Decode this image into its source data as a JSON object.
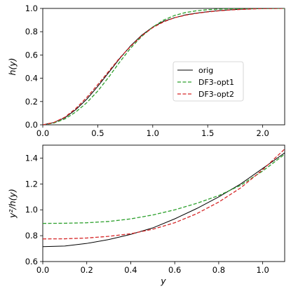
{
  "chart_data": [
    {
      "type": "line",
      "ylabel": "h(y)",
      "xlabel": "",
      "xlim": [
        0.0,
        2.2
      ],
      "ylim": [
        0.0,
        1.0
      ],
      "xticks": [
        "0.0",
        "0.5",
        "1.0",
        "1.5",
        "2.0"
      ],
      "yticks": [
        "0.0",
        "0.2",
        "0.4",
        "0.6",
        "0.8",
        "1.0"
      ],
      "legend": {
        "placement": "center-right",
        "entries": [
          "orig",
          "DF3-opt1",
          "DF3-opt2"
        ]
      },
      "series": [
        {
          "name": "orig",
          "color": "#000000",
          "style": "solid",
          "x": [
            0.0,
            0.1,
            0.2,
            0.3,
            0.4,
            0.5,
            0.6,
            0.7,
            0.8,
            0.9,
            1.0,
            1.1,
            1.2,
            1.3,
            1.4,
            1.5,
            1.6,
            1.7,
            1.8,
            1.9,
            2.0,
            2.1,
            2.2
          ],
          "y": [
            0.0,
            0.02,
            0.06,
            0.13,
            0.22,
            0.33,
            0.45,
            0.57,
            0.68,
            0.77,
            0.84,
            0.89,
            0.92,
            0.945,
            0.96,
            0.972,
            0.981,
            0.988,
            0.993,
            0.996,
            0.998,
            0.999,
            1.0
          ]
        },
        {
          "name": "DF3-opt1",
          "color": "#2ca02c",
          "style": "dashed",
          "x": [
            0.0,
            0.1,
            0.2,
            0.3,
            0.4,
            0.5,
            0.6,
            0.7,
            0.8,
            0.9,
            1.0,
            1.1,
            1.2,
            1.3,
            1.4,
            1.5,
            1.6,
            1.7,
            1.8,
            1.9,
            2.0,
            2.1,
            2.2
          ],
          "y": [
            0.0,
            0.015,
            0.05,
            0.11,
            0.19,
            0.29,
            0.41,
            0.54,
            0.66,
            0.76,
            0.84,
            0.9,
            0.94,
            0.965,
            0.98,
            0.989,
            0.994,
            0.997,
            0.998,
            0.999,
            1.0,
            1.0,
            1.0
          ]
        },
        {
          "name": "DF3-opt2",
          "color": "#d62728",
          "style": "dashed",
          "x": [
            0.0,
            0.1,
            0.2,
            0.3,
            0.4,
            0.5,
            0.6,
            0.7,
            0.8,
            0.9,
            1.0,
            1.1,
            1.2,
            1.3,
            1.4,
            1.5,
            1.6,
            1.7,
            1.8,
            1.9,
            2.0,
            2.1,
            2.2
          ],
          "y": [
            0.0,
            0.02,
            0.065,
            0.14,
            0.235,
            0.345,
            0.46,
            0.575,
            0.675,
            0.765,
            0.835,
            0.885,
            0.92,
            0.942,
            0.958,
            0.97,
            0.979,
            0.986,
            0.991,
            0.995,
            0.998,
            0.999,
            1.0
          ]
        }
      ]
    },
    {
      "type": "line",
      "ylabel": "y²/h(y)",
      "xlabel": "y",
      "xlim": [
        0.0,
        1.1
      ],
      "ylim": [
        0.6,
        1.5
      ],
      "xticks": [
        "0.0",
        "0.2",
        "0.4",
        "0.6",
        "0.8",
        "1.0"
      ],
      "yticks": [
        "0.6",
        "0.8",
        "1.0",
        "1.2",
        "1.4"
      ],
      "series": [
        {
          "name": "orig",
          "color": "#000000",
          "style": "solid",
          "x": [
            0.0,
            0.1,
            0.2,
            0.3,
            0.4,
            0.5,
            0.6,
            0.7,
            0.8,
            0.9,
            1.0,
            1.1
          ],
          "y": [
            0.715,
            0.72,
            0.74,
            0.77,
            0.81,
            0.86,
            0.93,
            1.01,
            1.1,
            1.2,
            1.32,
            1.44
          ]
        },
        {
          "name": "DF3-opt1",
          "color": "#2ca02c",
          "style": "dashed",
          "x": [
            0.0,
            0.1,
            0.2,
            0.3,
            0.4,
            0.5,
            0.6,
            0.7,
            0.8,
            0.9,
            1.0,
            1.1
          ],
          "y": [
            0.895,
            0.896,
            0.9,
            0.91,
            0.93,
            0.96,
            1.0,
            1.05,
            1.11,
            1.19,
            1.3,
            1.43
          ]
        },
        {
          "name": "DF3-opt2",
          "color": "#d62728",
          "style": "dashed",
          "x": [
            0.0,
            0.1,
            0.2,
            0.3,
            0.4,
            0.5,
            0.6,
            0.7,
            0.8,
            0.9,
            1.0,
            1.1
          ],
          "y": [
            0.775,
            0.776,
            0.782,
            0.795,
            0.815,
            0.85,
            0.9,
            0.97,
            1.06,
            1.17,
            1.31,
            1.47
          ]
        }
      ]
    }
  ]
}
